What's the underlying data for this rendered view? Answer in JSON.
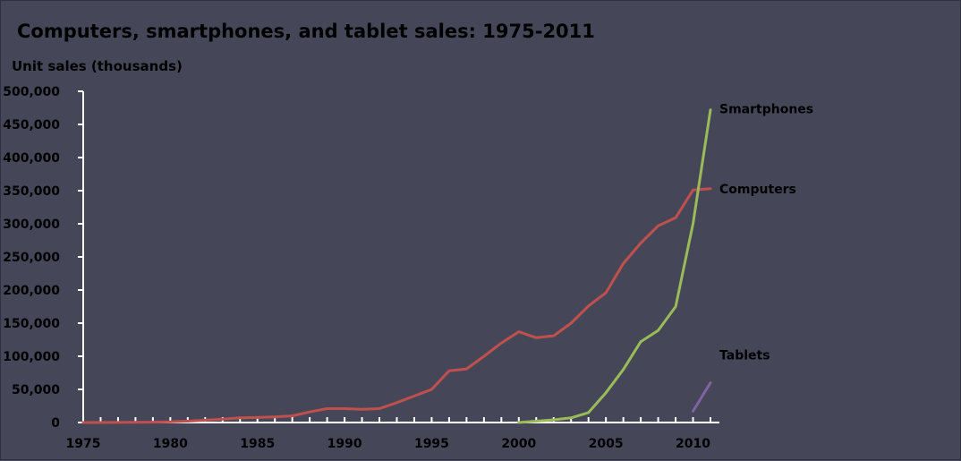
{
  "chart_data": {
    "type": "line",
    "title": "Computers, smartphones, and tablet sales: 1975-2011",
    "ylabel": "Unit sales (thousands)",
    "xlabel": "",
    "xlim": [
      1975,
      2011
    ],
    "ylim": [
      0,
      500000
    ],
    "x_ticks": [
      1975,
      1980,
      1985,
      1990,
      1995,
      2000,
      2005,
      2010
    ],
    "y_ticks": [
      0,
      50000,
      100000,
      150000,
      200000,
      250000,
      300000,
      350000,
      400000,
      450000,
      500000
    ],
    "y_tick_labels": [
      "0",
      "50,000",
      "100,000",
      "150,000",
      "200,000",
      "250,000",
      "300,000",
      "350,000",
      "400,000",
      "450,000",
      "500,000"
    ],
    "grid": false,
    "legend": "inline-right",
    "series": [
      {
        "name": "Computers",
        "color": "#c0504d",
        "x": [
          1975,
          1976,
          1977,
          1978,
          1979,
          1980,
          1981,
          1982,
          1983,
          1984,
          1985,
          1986,
          1987,
          1988,
          1989,
          1990,
          1991,
          1992,
          1993,
          1994,
          1995,
          1996,
          1997,
          1998,
          1999,
          2000,
          2001,
          2002,
          2003,
          2004,
          2005,
          2006,
          2007,
          2008,
          2009,
          2010,
          2011
        ],
        "values": [
          0,
          0,
          100,
          300,
          600,
          1000,
          2000,
          3500,
          5000,
          7000,
          7500,
          8500,
          10000,
          16000,
          21000,
          21000,
          20000,
          21000,
          30000,
          40000,
          50000,
          78000,
          81000,
          100000,
          120000,
          137000,
          128000,
          131000,
          150000,
          176000,
          196000,
          240000,
          271000,
          297000,
          309000,
          351000,
          353000
        ]
      },
      {
        "name": "Smartphones",
        "color": "#9bbb59",
        "x": [
          2000,
          2001,
          2002,
          2003,
          2004,
          2005,
          2006,
          2007,
          2008,
          2009,
          2010,
          2011
        ],
        "values": [
          0,
          2000,
          4000,
          7000,
          15000,
          45000,
          80000,
          122000,
          139000,
          175000,
          300000,
          472000
        ]
      },
      {
        "name": "Tablets",
        "color": "#8064a2",
        "x": [
          2010,
          2011
        ],
        "values": [
          17000,
          60000
        ]
      }
    ]
  }
}
